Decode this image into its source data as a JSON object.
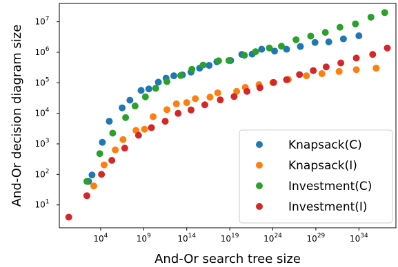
{
  "chart_data": {
    "type": "scatter",
    "title": "",
    "xlabel": "And-Or search tree size",
    "ylabel": "And-Or decision diagram size",
    "xscale": "log",
    "yscale": "log",
    "xlim_exp": [
      -0.8,
      38.3
    ],
    "ylim_exp": [
      0.25,
      7.6
    ],
    "x_ticks": [
      {
        "exp": 4,
        "base": "10",
        "sup": "4"
      },
      {
        "exp": 9,
        "base": "10",
        "sup": "9"
      },
      {
        "exp": 14,
        "base": "10",
        "sup": "14"
      },
      {
        "exp": 19,
        "base": "10",
        "sup": "19"
      },
      {
        "exp": 24,
        "base": "10",
        "sup": "24"
      },
      {
        "exp": 29,
        "base": "10",
        "sup": "29"
      },
      {
        "exp": 34,
        "base": "10",
        "sup": "34"
      }
    ],
    "y_ticks": [
      {
        "exp": 1,
        "base": "10",
        "sup": "1"
      },
      {
        "exp": 2,
        "base": "10",
        "sup": "2"
      },
      {
        "exp": 3,
        "base": "10",
        "sup": "3"
      },
      {
        "exp": 4,
        "base": "10",
        "sup": "4"
      },
      {
        "exp": 5,
        "base": "10",
        "sup": "5"
      },
      {
        "exp": 6,
        "base": "10",
        "sup": "6"
      },
      {
        "exp": 7,
        "base": "10",
        "sup": "7"
      }
    ],
    "grid": false,
    "legend_position": "bottom-right",
    "series": [
      {
        "name": "Knapsack(C)",
        "color": "#1f77b4",
        "x_exp": [
          2.6,
          3.0,
          4.2,
          5.0,
          6.5,
          7.4,
          8.7,
          9.6,
          10.7,
          11.6,
          12.5,
          13.5,
          14.5,
          15.5,
          16.6,
          17.5,
          19.1,
          20.4,
          21.6,
          22.7,
          24.2,
          25.6,
          27.2,
          28.9,
          30.5,
          32.2,
          34.0
        ],
        "y_exp": [
          1.77,
          1.98,
          3.05,
          3.74,
          4.18,
          4.43,
          4.75,
          4.8,
          5.02,
          5.15,
          5.23,
          5.26,
          5.35,
          5.48,
          5.57,
          5.69,
          5.73,
          5.93,
          5.94,
          6.1,
          6.04,
          6.1,
          6.19,
          6.32,
          6.34,
          6.44,
          6.54
        ]
      },
      {
        "name": "Knapsack(I)",
        "color": "#ff7f0e",
        "x_exp": [
          3.2,
          4.4,
          5.7,
          6.6,
          8.1,
          9.1,
          10.1,
          11.7,
          12.8,
          14.0,
          15.0,
          16.7,
          17.6,
          19.8,
          20.8,
          22.4,
          24.0,
          25.8,
          27.9,
          29.7,
          31.7,
          33.7,
          36.0
        ],
        "y_exp": [
          1.62,
          2.31,
          2.8,
          3.14,
          3.44,
          3.48,
          3.89,
          4.12,
          4.31,
          4.35,
          4.48,
          4.53,
          4.67,
          4.72,
          4.85,
          4.94,
          5.01,
          5.11,
          5.23,
          5.3,
          5.37,
          5.43,
          5.48
        ]
      },
      {
        "name": "Investment(C)",
        "color": "#2ca02c",
        "x_exp": [
          2.4,
          3.9,
          5.4,
          6.9,
          8.0,
          9.2,
          10.4,
          11.7,
          13.3,
          14.6,
          15.9,
          17.7,
          18.9,
          20.7,
          22.0,
          23.6,
          25.0,
          26.7,
          28.4,
          30.1,
          31.8,
          33.6,
          35.4,
          37.0
        ],
        "y_exp": [
          1.77,
          2.68,
          3.35,
          3.86,
          4.24,
          4.54,
          4.82,
          5.04,
          5.24,
          5.44,
          5.58,
          5.72,
          5.73,
          5.9,
          6.02,
          6.14,
          6.2,
          6.41,
          6.53,
          6.65,
          6.82,
          6.93,
          7.15,
          7.3
        ]
      },
      {
        "name": "Investment(I)",
        "color": "#d62728",
        "x_exp": [
          0.3,
          2.4,
          4.1,
          5.3,
          6.8,
          8.4,
          9.9,
          11.5,
          13.0,
          14.5,
          16.1,
          17.9,
          19.5,
          21.0,
          22.5,
          24.1,
          25.6,
          27.1,
          28.7,
          30.2,
          31.9,
          33.7,
          35.6,
          37.3
        ],
        "y_exp": [
          0.6,
          1.3,
          2.0,
          2.46,
          2.86,
          3.28,
          3.53,
          3.74,
          4.0,
          4.11,
          4.28,
          4.44,
          4.55,
          4.72,
          4.84,
          5.01,
          5.1,
          5.27,
          5.4,
          5.52,
          5.65,
          5.81,
          5.93,
          6.14
        ]
      }
    ]
  }
}
